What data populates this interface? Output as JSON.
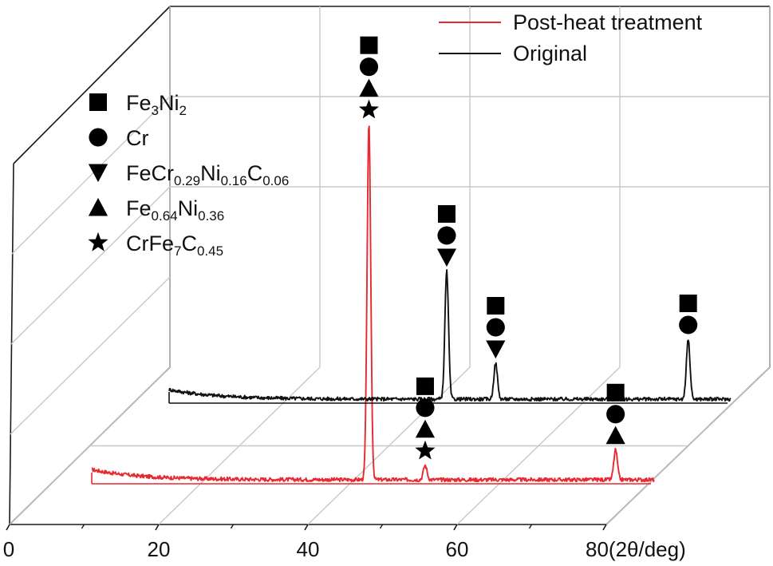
{
  "chart_data": {
    "type": "line",
    "title": "",
    "xlabel": "(2θ/deg)",
    "ylabel": "",
    "xlim": [
      0,
      80
    ],
    "x_ticks": [
      {
        "value": 0,
        "label": "0"
      },
      {
        "value": 20,
        "label": "20"
      },
      {
        "value": 40,
        "label": "40"
      },
      {
        "value": 60,
        "label": "60"
      },
      {
        "value": 80,
        "label": "80"
      }
    ],
    "grid": true,
    "legend_position": "top-right",
    "series": [
      {
        "name": "Post-heat treatment",
        "color": "#e8292f",
        "baseline": 0.2,
        "start_bump": 1.2,
        "x_range": [
          10,
          80
        ],
        "peaks": [
          {
            "x": 44.5,
            "height": 42.0
          },
          {
            "x": 51.5,
            "height": 1.7
          },
          {
            "x": 75.2,
            "height": 3.5
          }
        ]
      },
      {
        "name": "Original",
        "color": "#111111",
        "baseline": 0.2,
        "start_bump": 1.2,
        "x_range": [
          10,
          80
        ],
        "peaks": [
          {
            "x": 44.6,
            "height": 16.0
          },
          {
            "x": 50.7,
            "height": 4.5
          },
          {
            "x": 74.7,
            "height": 7.5
          }
        ]
      }
    ],
    "phase_legend": [
      {
        "symbol": "square",
        "base": "Fe",
        "parts": [
          [
            "3",
            "Ni"
          ],
          [
            "2",
            ""
          ]
        ]
      },
      {
        "symbol": "circle",
        "base": "Cr",
        "parts": []
      },
      {
        "symbol": "triangle-down",
        "base": "FeCr",
        "parts": [
          [
            "0.29",
            "Ni"
          ],
          [
            "0.16",
            "C"
          ],
          [
            "0.06",
            ""
          ]
        ]
      },
      {
        "symbol": "triangle-up",
        "base": "Fe",
        "parts": [
          [
            "0.64",
            "Ni"
          ],
          [
            "0.36",
            ""
          ]
        ]
      },
      {
        "symbol": "star",
        "base": "CrFe",
        "parts": [
          [
            "7",
            "C"
          ],
          [
            "0.45",
            ""
          ]
        ]
      }
    ],
    "peak_annotations": [
      {
        "series": "Post-heat treatment",
        "x": 44.5,
        "symbols": [
          "square",
          "circle",
          "triangle-up",
          "star"
        ]
      },
      {
        "series": "Post-heat treatment",
        "x": 51.5,
        "symbols": [
          "square",
          "circle",
          "triangle-up",
          "star"
        ]
      },
      {
        "series": "Post-heat treatment",
        "x": 75.2,
        "symbols": [
          "square",
          "circle",
          "triangle-up"
        ]
      },
      {
        "series": "Original",
        "x": 44.6,
        "symbols": [
          "square",
          "circle",
          "triangle-down"
        ]
      },
      {
        "series": "Original",
        "x": 50.7,
        "symbols": [
          "square",
          "circle",
          "triangle-down"
        ]
      },
      {
        "series": "Original",
        "x": 74.7,
        "symbols": [
          "square",
          "circle"
        ]
      }
    ]
  }
}
